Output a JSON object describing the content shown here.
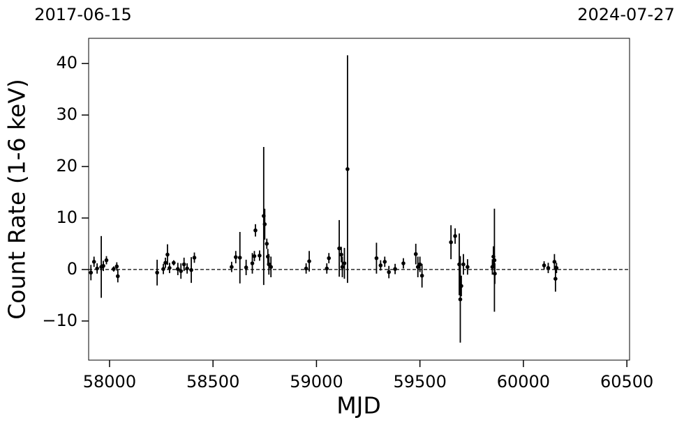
{
  "chart_data": {
    "type": "errorbar",
    "x_label": "MJD",
    "y_label": "Count Rate (1-6 keV)",
    "top_labels": [
      "2017-06-15",
      "2024-07-27"
    ],
    "xlim": [
      57899,
      60513
    ],
    "ylim": [
      -17.6,
      44.9
    ],
    "xticks": [
      58000,
      58500,
      59000,
      59500,
      60000,
      60500
    ],
    "yticks": [
      {
        "value": -10,
        "label": "−10"
      },
      0,
      10,
      20,
      30,
      40
    ],
    "hline": 0,
    "color": "#000000",
    "x": [
      57910,
      57925,
      57940,
      57960,
      57970,
      57985,
      58020,
      58035,
      58040,
      58230,
      58260,
      58270,
      58280,
      58290,
      58310,
      58330,
      58345,
      58360,
      58375,
      58395,
      58410,
      58590,
      58610,
      58630,
      58660,
      58690,
      58700,
      58705,
      58725,
      58745,
      58750,
      58760,
      58765,
      58770,
      58780,
      58950,
      58965,
      59050,
      59060,
      59110,
      59120,
      59125,
      59135,
      59150,
      59290,
      59310,
      59330,
      59350,
      59380,
      59420,
      59480,
      59490,
      59500,
      59510,
      59650,
      59670,
      59690,
      59695,
      59700,
      59710,
      59730,
      59850,
      59855,
      59860,
      59862,
      60100,
      60120,
      60150,
      60155,
      60160
    ],
    "values": [
      -0.6,
      1.5,
      0.2,
      0.5,
      0.7,
      1.8,
      0.1,
      0.6,
      -1.3,
      -0.6,
      0.1,
      1.3,
      2.9,
      0.3,
      1.3,
      0.1,
      -0.3,
      1.0,
      0.2,
      -0.1,
      2.3,
      0.5,
      2.4,
      2.3,
      0.4,
      1.2,
      2.6,
      7.6,
      2.7,
      10.4,
      8.8,
      5.0,
      2.5,
      1.0,
      0.5,
      0.2,
      1.6,
      0.2,
      2.2,
      4.1,
      2.9,
      0.5,
      1.2,
      19.5,
      2.2,
      0.8,
      1.5,
      -0.5,
      0.1,
      1.2,
      3.0,
      0.5,
      1.0,
      -1.2,
      5.3,
      6.5,
      1.0,
      -5.8,
      -3.2,
      1.0,
      0.5,
      0.5,
      2.5,
      1.8,
      -0.8,
      0.8,
      0.3,
      1.5,
      -1.8,
      0.3
    ],
    "errors": [
      1.5,
      1,
      1,
      6,
      1,
      0.8,
      0.5,
      0.8,
      1.2,
      2.5,
      1,
      1,
      2,
      1,
      0.5,
      1.2,
      1.5,
      1.3,
      1,
      2.5,
      1,
      1,
      1.2,
      5,
      1.5,
      2,
      1,
      1.2,
      1,
      13.4,
      3,
      1,
      1.5,
      2,
      2,
      1,
      2,
      1,
      1,
      5.5,
      1.5,
      2,
      3,
      22.1,
      3,
      1,
      1,
      1.2,
      1,
      1,
      2,
      2,
      1.5,
      2.3,
      3.3,
      1.5,
      6,
      8.4,
      2,
      2,
      1.5,
      1.5,
      2,
      10,
      2,
      0.8,
      1,
      1.5,
      2.5,
      1
    ]
  }
}
